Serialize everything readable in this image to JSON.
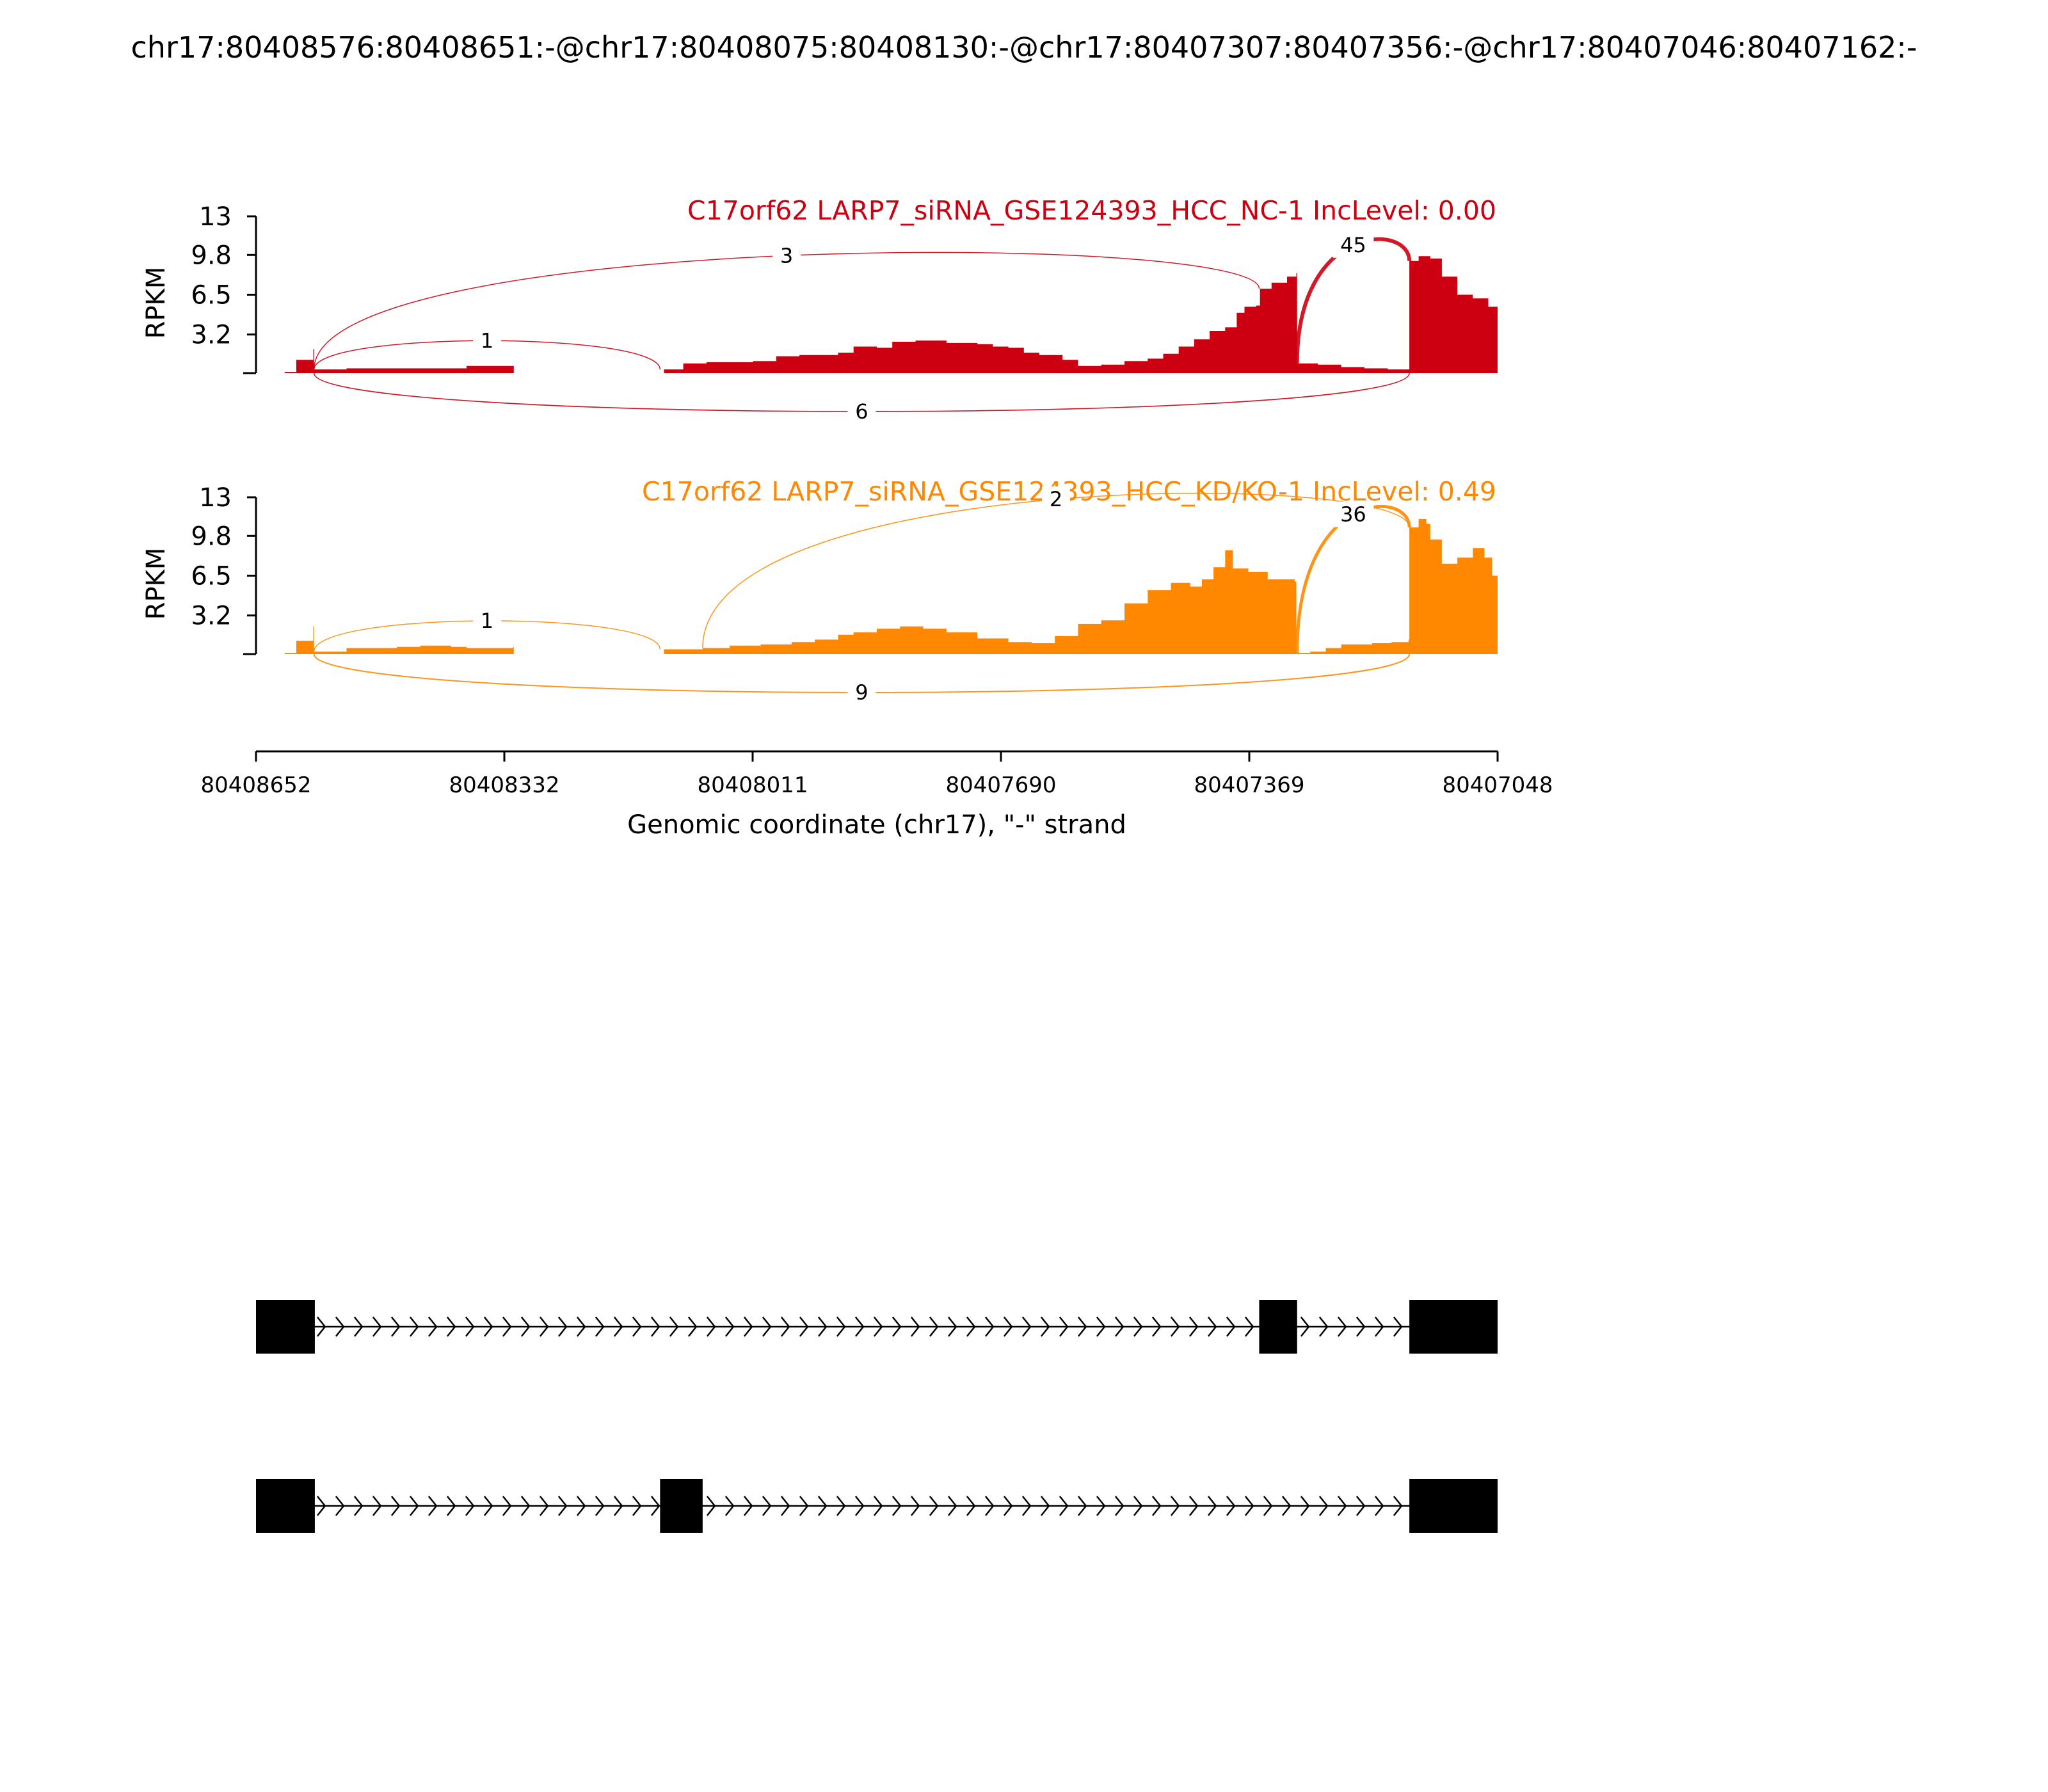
{
  "chart_data": {
    "type": "sashimi",
    "title": "chr17:80408576:80408651:-@chr17:80408075:80408130:-@chr17:80407307:80407356:-@chr17:80407046:80407162:-",
    "xlabel": "Genomic coordinate (chr17), \"-\" strand",
    "x_ticks": [
      "80408652",
      "80408332",
      "80408011",
      "80407690",
      "80407369",
      "80407048"
    ],
    "x_range": [
      80408652,
      80407048
    ],
    "panels": [
      {
        "label": "C17orf62 LARP7_siRNA_GSE124393_HCC_NC-1 IncLevel: 0.00",
        "color": "#cc0011",
        "ylabel": "RPKM",
        "y_ticks": [
          "13",
          "9.8",
          "6.5",
          "3.2"
        ],
        "ylim": [
          0,
          13
        ],
        "coverage": [
          [
            80408615,
            0.1
          ],
          [
            80408600,
            1.1
          ],
          [
            80408578,
            2.0
          ],
          [
            80408577,
            0.3
          ],
          [
            80408535,
            0.4
          ],
          [
            80408430,
            0.4
          ],
          [
            80408390,
            0.4
          ],
          [
            80408380,
            0.6
          ],
          [
            80408320,
            0.6
          ],
          [
            80408319,
            0.0
          ],
          [
            80408125,
            0.3
          ],
          [
            80408100,
            0.8
          ],
          [
            80408070,
            0.9
          ],
          [
            80408010,
            1.0
          ],
          [
            80407980,
            1.4
          ],
          [
            80407950,
            1.5
          ],
          [
            80407900,
            1.7
          ],
          [
            80407880,
            2.2
          ],
          [
            80407850,
            2.1
          ],
          [
            80407830,
            2.6
          ],
          [
            80407800,
            2.7
          ],
          [
            80407760,
            2.5
          ],
          [
            80407720,
            2.4
          ],
          [
            80407700,
            2.2
          ],
          [
            80407680,
            2.1
          ],
          [
            80407660,
            1.7
          ],
          [
            80407640,
            1.5
          ],
          [
            80407610,
            1.1
          ],
          [
            80407590,
            0.6
          ],
          [
            80407560,
            0.7
          ],
          [
            80407530,
            1.0
          ],
          [
            80407500,
            1.2
          ],
          [
            80407480,
            1.6
          ],
          [
            80407460,
            2.2
          ],
          [
            80407440,
            2.8
          ],
          [
            80407420,
            3.5
          ],
          [
            80407400,
            3.8
          ],
          [
            80407385,
            5.0
          ],
          [
            80407375,
            5.5
          ],
          [
            80407360,
            5.6
          ],
          [
            80407355,
            7.0
          ],
          [
            80407340,
            7.5
          ],
          [
            80407320,
            8.0
          ],
          [
            80407308,
            8.3
          ],
          [
            80407307,
            0.8
          ],
          [
            80407280,
            0.7
          ],
          [
            80407250,
            0.5
          ],
          [
            80407220,
            0.4
          ],
          [
            80407190,
            0.3
          ],
          [
            80407175,
            0.3
          ],
          [
            80407165,
            0.3
          ],
          [
            80407162,
            9.3
          ],
          [
            80407150,
            9.7
          ],
          [
            80407135,
            9.5
          ],
          [
            80407120,
            8.0
          ],
          [
            80407100,
            6.5
          ],
          [
            80407080,
            6.2
          ],
          [
            80407060,
            5.5
          ],
          [
            80407048,
            4.2
          ]
        ],
        "junctions": [
          {
            "count": "3",
            "from": 80408577,
            "to": 80407356,
            "side": "above"
          },
          {
            "count": "45",
            "from": 80407307,
            "to": 80407162,
            "side": "above"
          },
          {
            "count": "1",
            "from": 80408577,
            "to": 80408130,
            "side": "above"
          },
          {
            "count": "6",
            "from": 80408577,
            "to": 80407162,
            "side": "below"
          }
        ]
      },
      {
        "label": "C17orf62 LARP7_siRNA_GSE124393_HCC_KD/KO-1 IncLevel: 0.49",
        "color": "#ff8800",
        "ylabel": "RPKM",
        "y_ticks": [
          "13",
          "9.8",
          "6.5",
          "3.2"
        ],
        "ylim": [
          0,
          13
        ],
        "coverage": [
          [
            80408615,
            0.1
          ],
          [
            80408600,
            1.1
          ],
          [
            80408578,
            2.3
          ],
          [
            80408577,
            0.2
          ],
          [
            80408535,
            0.5
          ],
          [
            80408470,
            0.6
          ],
          [
            80408440,
            0.7
          ],
          [
            80408400,
            0.6
          ],
          [
            80408380,
            0.5
          ],
          [
            80408320,
            0.6
          ],
          [
            80408319,
            0.0
          ],
          [
            80408125,
            0.4
          ],
          [
            80408075,
            0.5
          ],
          [
            80408040,
            0.7
          ],
          [
            80408000,
            0.8
          ],
          [
            80407960,
            1.0
          ],
          [
            80407930,
            1.2
          ],
          [
            80407900,
            1.6
          ],
          [
            80407880,
            1.8
          ],
          [
            80407850,
            2.1
          ],
          [
            80407820,
            2.3
          ],
          [
            80407790,
            2.1
          ],
          [
            80407760,
            1.8
          ],
          [
            80407720,
            1.3
          ],
          [
            80407680,
            1.0
          ],
          [
            80407650,
            0.9
          ],
          [
            80407620,
            1.5
          ],
          [
            80407590,
            2.5
          ],
          [
            80407560,
            2.8
          ],
          [
            80407530,
            4.2
          ],
          [
            80407500,
            5.3
          ],
          [
            80407470,
            5.9
          ],
          [
            80407445,
            5.6
          ],
          [
            80407430,
            6.2
          ],
          [
            80407415,
            7.2
          ],
          [
            80407400,
            8.6
          ],
          [
            80407390,
            7.1
          ],
          [
            80407370,
            6.8
          ],
          [
            80407345,
            6.2
          ],
          [
            80407310,
            6.0
          ],
          [
            80407308,
            0.1
          ],
          [
            80407290,
            0.2
          ],
          [
            80407270,
            0.5
          ],
          [
            80407250,
            0.8
          ],
          [
            80407210,
            0.9
          ],
          [
            80407185,
            1.0
          ],
          [
            80407163,
            1.2
          ],
          [
            80407162,
            10.5
          ],
          [
            80407150,
            11.2
          ],
          [
            80407140,
            10.8
          ],
          [
            80407135,
            9.5
          ],
          [
            80407120,
            7.5
          ],
          [
            80407100,
            8.0
          ],
          [
            80407080,
            8.8
          ],
          [
            80407065,
            8.0
          ],
          [
            80407055,
            6.5
          ],
          [
            80407048,
            6.0
          ]
        ],
        "junctions": [
          {
            "count": "1",
            "from": 80408577,
            "to": 80408130,
            "side": "above"
          },
          {
            "count": "2",
            "from": 80408075,
            "to": 80407162,
            "side": "above"
          },
          {
            "count": "36",
            "from": 80407307,
            "to": 80407162,
            "side": "above"
          },
          {
            "count": "9",
            "from": 80408577,
            "to": 80407162,
            "side": "below"
          }
        ]
      }
    ],
    "isoforms": [
      {
        "exons": [
          [
            80408652,
            80408576
          ],
          [
            80407356,
            80407307
          ],
          [
            80407162,
            80407048
          ]
        ]
      },
      {
        "exons": [
          [
            80408652,
            80408576
          ],
          [
            80408130,
            80408075
          ],
          [
            80407162,
            80407048
          ]
        ]
      }
    ]
  }
}
